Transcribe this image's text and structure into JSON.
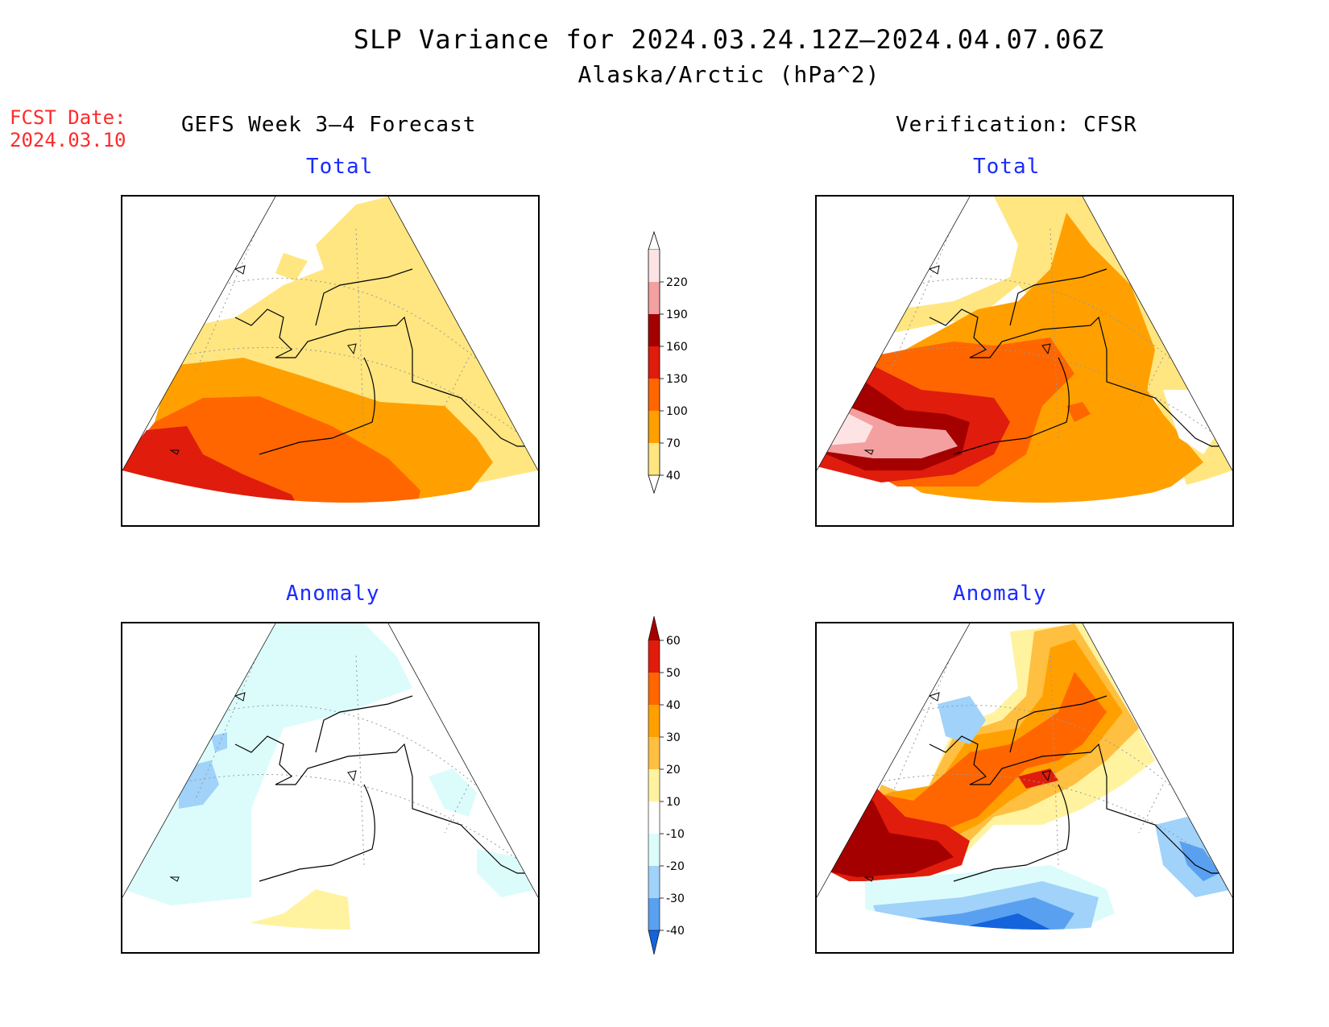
{
  "title": {
    "line1": "SLP Variance for 2024.03.24.12Z–2024.04.07.06Z",
    "line2": "Alaska/Arctic (hPa^2)"
  },
  "forecast_date": {
    "label": "FCST Date:",
    "value": "2024.03.10"
  },
  "columns": {
    "left_header": "GEFS Week 3–4 Forecast",
    "right_header": "Verification: CFSR"
  },
  "panels": {
    "top_left_label": "Total",
    "top_right_label": "Total",
    "bottom_left_label": "Anomaly",
    "bottom_right_label": "Anomaly"
  },
  "colorbars": {
    "total": {
      "labels": [
        "220",
        "190",
        "160",
        "130",
        "100",
        "70",
        "40"
      ],
      "colors": [
        "#fde3e3",
        "#f4a0a0",
        "#a40000",
        "#e01c0c",
        "#ff6600",
        "#ffa000",
        "#ffe680"
      ]
    },
    "anomaly": {
      "labels": [
        "60",
        "50",
        "40",
        "30",
        "20",
        "10",
        "-10",
        "-20",
        "-30",
        "-40"
      ],
      "colors": [
        "#a40000",
        "#e01c0c",
        "#ff6600",
        "#ffa000",
        "#ffbf40",
        "#fff3a0",
        "#ffffff",
        "#dcfcfc",
        "#a0d2fa",
        "#5aa0f0",
        "#1464dc"
      ]
    }
  },
  "map_colors": {
    "yellow": "#ffe680",
    "orange": "#ffa000",
    "dark_orange": "#ff6600",
    "red": "#e01c0c",
    "dark_red": "#a40000",
    "pink": "#f4a0a0",
    "light_pink": "#fde3e3",
    "light_yellow": "#fff3a0",
    "gold": "#ffbf40",
    "light_cyan": "#dcfcfc",
    "light_blue": "#a0d2fa",
    "mid_blue": "#5aa0f0",
    "deep_blue": "#1464dc"
  }
}
